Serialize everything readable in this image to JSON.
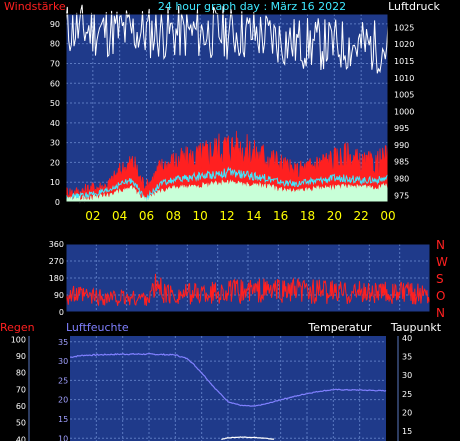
{
  "colors": {
    "red": "#ff2020",
    "white": "#ffffff",
    "cyan": "#40e8ff",
    "yellow": "#ffff00",
    "blue_plot": "#1f3a8a",
    "grid": "#5a78c0",
    "mint": "#c8ffd8",
    "lavender": "#a0a0ff",
    "light_blue": "#8080ff"
  },
  "chart_data": [
    {
      "type": "line",
      "title": "24 hour graph day : März 16 2022",
      "left_axis_label": "Windstärke",
      "right_axis_label": "Luftdruck",
      "x_ticks": [
        "02",
        "04",
        "06",
        "08",
        "10",
        "12",
        "14",
        "16",
        "18",
        "20",
        "22",
        "00"
      ],
      "left_ticks": [
        "90",
        "80",
        "70",
        "60",
        "50",
        "40",
        "30",
        "20",
        "10",
        "0"
      ],
      "right_ticks": [
        "1025",
        "1020",
        "1015",
        "1010",
        "1005",
        "1000",
        "995",
        "990",
        "985",
        "980",
        "975"
      ],
      "left_range": [
        0,
        95
      ],
      "right_range": [
        973,
        1029
      ],
      "x_range": [
        0,
        24
      ],
      "series": [
        {
          "name": "pressure",
          "axis": "right",
          "color": "#ffffff",
          "x": [
            0,
            2,
            4,
            6,
            8,
            10,
            12,
            14,
            15,
            16,
            17,
            18,
            20,
            22,
            24
          ],
          "y": [
            1024.5,
            1024.2,
            1023.8,
            1023.5,
            1023.3,
            1023.4,
            1023.5,
            1023.0,
            1022.3,
            1021.2,
            1020.4,
            1020.1,
            1019.8,
            1019.5,
            1019.3
          ]
        },
        {
          "name": "gusts",
          "axis": "left",
          "color": "#ff2020",
          "style": "area",
          "x": [
            0,
            1,
            2,
            3,
            4,
            5,
            5.5,
            6,
            6.5,
            7,
            8,
            9,
            10,
            11,
            12,
            13,
            14,
            15,
            16,
            17,
            18,
            19,
            20,
            21,
            22,
            23,
            24
          ],
          "y": [
            5,
            5,
            7,
            8,
            15,
            20,
            12,
            8,
            12,
            17,
            20,
            21,
            23,
            26,
            28,
            27,
            24,
            23,
            19,
            15,
            17,
            20,
            21,
            23,
            19,
            19,
            22
          ]
        },
        {
          "name": "wind",
          "axis": "left",
          "color": "#40e8ff",
          "x": [
            0,
            1,
            2,
            3,
            4,
            5,
            5.5,
            6,
            6.5,
            7,
            8,
            9,
            10,
            11,
            12,
            13,
            14,
            15,
            16,
            17,
            18,
            19,
            20,
            21,
            22,
            23,
            24
          ],
          "y": [
            2,
            3,
            4,
            5,
            9,
            11,
            5,
            2,
            5,
            9,
            11,
            12,
            13,
            14,
            15,
            14,
            13,
            12,
            10,
            9,
            10,
            11,
            12,
            12,
            11,
            11,
            12
          ]
        },
        {
          "name": "wind_avg",
          "axis": "left",
          "color": "#c8ffd8",
          "style": "area",
          "x": [
            0,
            1,
            2,
            3,
            4,
            5,
            5.5,
            6,
            6.5,
            7,
            8,
            9,
            10,
            11,
            12,
            13,
            14,
            15,
            16,
            17,
            18,
            19,
            20,
            21,
            22,
            23,
            24
          ],
          "y": [
            1,
            1.5,
            2,
            3,
            5,
            7,
            3,
            1,
            3,
            5,
            7,
            7,
            8,
            9,
            10,
            9,
            8,
            8,
            6,
            5,
            6,
            7,
            7,
            8,
            7,
            7,
            8
          ]
        }
      ]
    },
    {
      "type": "line",
      "left_ticks": [
        "360",
        "270",
        "180",
        "90",
        "0"
      ],
      "right_labels": [
        "N",
        "W",
        "S",
        "O",
        "N"
      ],
      "left_range": [
        0,
        360
      ],
      "x_range": [
        0,
        24
      ],
      "series": [
        {
          "name": "direction",
          "color": "#ff2020",
          "x": [
            0,
            1,
            2,
            3,
            4,
            5,
            5.5,
            6,
            6.5,
            7,
            8,
            10,
            12,
            14,
            16,
            18,
            20,
            22,
            24
          ],
          "y": [
            90,
            85,
            80,
            75,
            72,
            75,
            80,
            140,
            100,
            90,
            95,
            105,
            110,
            112,
            110,
            105,
            102,
            100,
            100
          ]
        }
      ]
    },
    {
      "type": "line",
      "left_axis_label": "Regen",
      "left2_axis_label": "Luftfeuchte",
      "right_axis_label": "Temperatur",
      "right2_axis_label": "Taupunkt",
      "rain_ticks": [
        "100",
        "90",
        "80",
        "70",
        "60",
        "50",
        "40"
      ],
      "humidity_ticks": [
        "35",
        "30",
        "25",
        "20",
        "15",
        "10"
      ],
      "temp_ticks": [
        "40",
        "35",
        "30",
        "25",
        "20",
        "15"
      ],
      "rain_range": [
        36,
        102
      ],
      "humidity_range": [
        8,
        36.5
      ],
      "temp_range": [
        11,
        40.5
      ],
      "x_range": [
        0,
        24
      ],
      "series": [
        {
          "name": "humidity",
          "axis": "humidity",
          "color": "#8080ff",
          "x": [
            0,
            1,
            2,
            3,
            4,
            6,
            8,
            9,
            10,
            11,
            12,
            13,
            14,
            15,
            16,
            17,
            18,
            19,
            20,
            22,
            24
          ],
          "y": [
            31.0,
            31.5,
            31.6,
            31.7,
            31.8,
            31.8,
            31.6,
            30.5,
            27.0,
            23.0,
            19.5,
            18.5,
            18.3,
            19.0,
            20.0,
            20.8,
            21.6,
            22.2,
            22.6,
            22.5,
            22.3
          ]
        },
        {
          "name": "temperature",
          "axis": "temp",
          "color": "#ffffff",
          "x": [
            11.5,
            12,
            13,
            14,
            15,
            15.5
          ],
          "y": [
            12.8,
            13.2,
            13.4,
            13.3,
            13.0,
            12.8
          ]
        }
      ]
    }
  ]
}
